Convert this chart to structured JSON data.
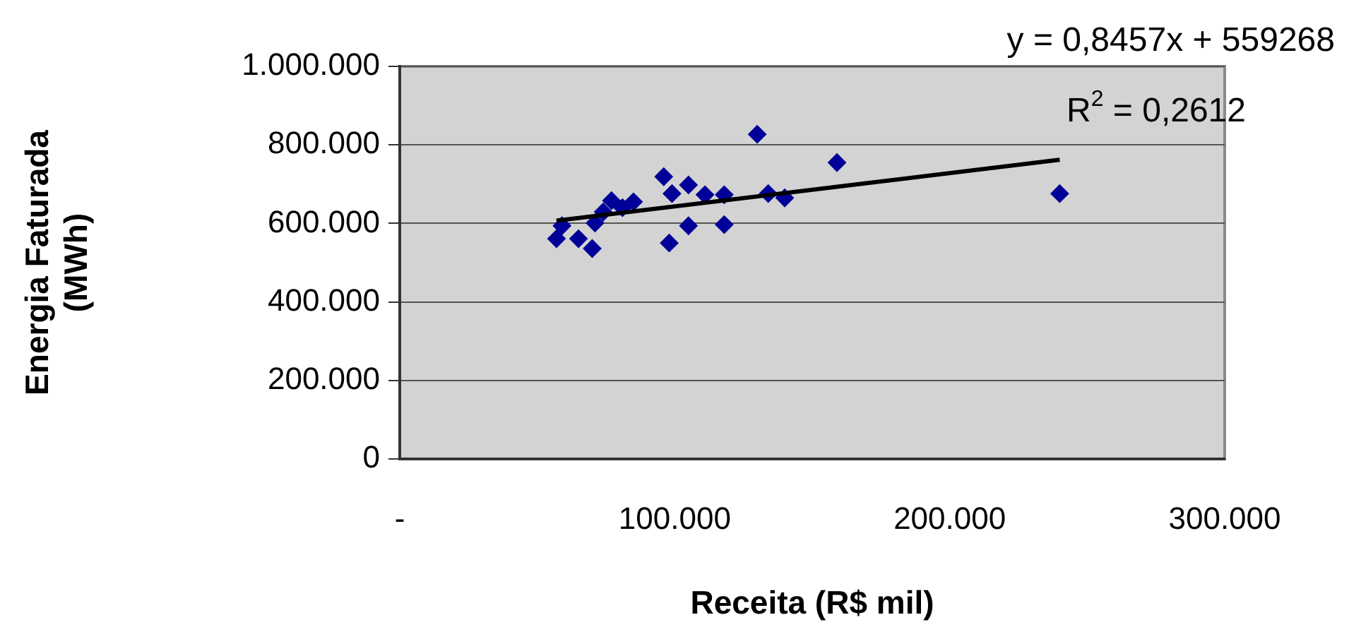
{
  "chart_data": {
    "type": "scatter",
    "xlabel": "Receita (R$ mil)",
    "ylabel": "Energia Faturada\n(MWh)",
    "annotations": [
      "y = 0,8457x + 559268",
      "R$^{2}$ = 0,2612"
    ],
    "series": [
      {
        "marker": "diamond",
        "color": "#000099",
        "x": [
          57000,
          65000,
          70000,
          59000,
          71000,
          74000,
          77000,
          81000,
          85000,
          96000,
          98000,
          99000,
          105000,
          105000,
          111000,
          118000,
          118000,
          130000,
          134000,
          140000,
          159000,
          240000
        ],
        "values": [
          561000,
          561000,
          536000,
          594000,
          601000,
          629000,
          658000,
          640000,
          655000,
          719000,
          550000,
          676000,
          698000,
          594000,
          673000,
          673000,
          597000,
          827000,
          676000,
          665000,
          755000,
          676000
        ]
      },
      {
        "type": "line",
        "marker": "none",
        "color": "#000000",
        "x": [
          57000,
          240000
        ],
        "values": [
          607000,
          762000
        ]
      }
    ],
    "xlim": [
      0,
      300000
    ],
    "ylim": [
      0,
      1000000
    ],
    "xticks": [
      {
        "value": 0,
        "label": "-"
      },
      {
        "value": 100000,
        "label": "100.000"
      },
      {
        "value": 200000,
        "label": "200.000"
      },
      {
        "value": 300000,
        "label": "300.000"
      }
    ],
    "yticks": [
      0,
      {
        "value": 200000,
        "label": "200.000"
      },
      {
        "value": 400000,
        "label": "400.000"
      },
      {
        "value": 600000,
        "label": "600.000"
      },
      {
        "value": 800000,
        "label": "800.000"
      },
      {
        "value": 1000000,
        "label": "1.000.000"
      }
    ],
    "grid": "y"
  }
}
